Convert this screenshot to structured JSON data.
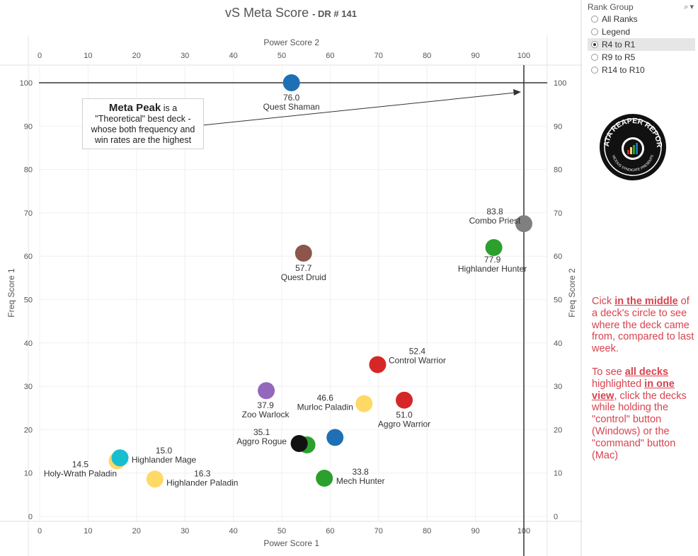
{
  "title": {
    "main": "vS Meta Score",
    "sub": "DR # 141"
  },
  "rank_group": {
    "label": "Rank Group",
    "options": [
      "All Ranks",
      "Legend",
      "R4 to R1",
      "R9 to R5",
      "R14 to R10"
    ],
    "selected": "R4 to R1"
  },
  "callout": {
    "bold": "Meta Peak",
    "rest1": " is a",
    "line2": "\"Theoretical\" best deck -",
    "line3": "whose both frequency and",
    "line4": "win rates are the highest"
  },
  "logo": {
    "top_text": "DATA REAPER REPORT",
    "bottom_text": "VICIOUS SYNDICATE PRESENTS"
  },
  "info": {
    "p1_pre": "Cick ",
    "p1_bold": "in the middle",
    "p1_post": " of a deck's circle to see where the deck came from, compared to last week.",
    "p2_pre": "To see ",
    "p2_bold1": "all decks ",
    "p2_mid": "highlighted ",
    "p2_bold2": "in one view",
    "p2_post": ", click the decks while holding the \"control\" button (Windows) or the \"command\" button (Mac)"
  },
  "chart_data": {
    "type": "scatter",
    "title": "vS Meta Score - DR # 141",
    "xlabel": "Power Score 1",
    "x2label": "Power Score 2",
    "ylabel": "Freq Score 1",
    "y2label": "Freq Score 2",
    "xlim": [
      0,
      105
    ],
    "ylim": [
      0,
      105
    ],
    "xticks": [
      0,
      10,
      20,
      30,
      40,
      50,
      60,
      70,
      80,
      90,
      100
    ],
    "yticks": [
      0,
      10,
      20,
      30,
      40,
      50,
      60,
      70,
      80,
      90,
      100
    ],
    "reference_lines": {
      "x": 100,
      "y": 100
    },
    "points": [
      {
        "name": "Quest Shaman",
        "score": "76.0",
        "x": 52,
        "y": 100,
        "color": "#1f6fb4"
      },
      {
        "name": "Combo Priest",
        "score": "83.8",
        "x": 100,
        "y": 67.5,
        "color": "#7f7f7f"
      },
      {
        "name": "Highlander Hunter",
        "score": "77.9",
        "x": 93.8,
        "y": 62,
        "color": "#2ca02c"
      },
      {
        "name": "Quest Druid",
        "score": "57.7",
        "x": 54.5,
        "y": 60.7,
        "color": "#8c564b"
      },
      {
        "name": "Control Warrior",
        "score": "52.4",
        "x": 69.8,
        "y": 35,
        "color": "#d62728"
      },
      {
        "name": "Zoo Warlock",
        "score": "37.9",
        "x": 46.8,
        "y": 29,
        "color": "#9467bd"
      },
      {
        "name": "Murloc Paladin",
        "score": "46.6",
        "x": 67,
        "y": 26,
        "color": "#ffd966"
      },
      {
        "name": "Aggro Warrior",
        "score": "51.0",
        "x": 75.3,
        "y": 26.8,
        "color": "#d62728"
      },
      {
        "name": "",
        "score": "",
        "x": 61,
        "y": 18.2,
        "color": "#1f6fb4"
      },
      {
        "name": "",
        "score": "",
        "x": 55.2,
        "y": 16.5,
        "color": "#2ca02c"
      },
      {
        "name": "Aggro Rogue",
        "score": "35.1",
        "x": 53.6,
        "y": 16.8,
        "color": "#111111"
      },
      {
        "name": "Mech Hunter",
        "score": "33.8",
        "x": 58.8,
        "y": 8.8,
        "color": "#2ca02c"
      },
      {
        "name": "Holy-Wrath Paladin",
        "score": "14.5",
        "x": 16,
        "y": 12.8,
        "color": "#ffd966"
      },
      {
        "name": "Highlander Mage",
        "score": "15.0",
        "x": 16.6,
        "y": 13.5,
        "color": "#17becf"
      },
      {
        "name": "Highlander Paladin",
        "score": "16.3",
        "x": 23.8,
        "y": 8.6,
        "color": "#ffd966"
      }
    ]
  }
}
